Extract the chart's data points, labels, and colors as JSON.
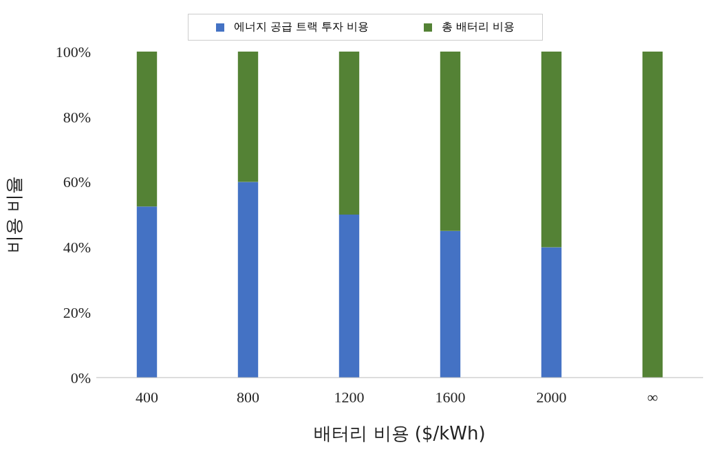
{
  "chart_data": {
    "type": "bar",
    "stacked": true,
    "xlabel": "배터리 비용 ($/kWh)",
    "ylabel": "비용 비율",
    "categories": [
      "400",
      "800",
      "1200",
      "1600",
      "2000",
      "∞"
    ],
    "series": [
      {
        "name": "에너지 공급 트랙 투자 비용",
        "color": "#4472c4",
        "values": [
          52.5,
          60,
          50,
          45,
          40,
          0
        ]
      },
      {
        "name": "총 배터리 비용",
        "color": "#548235",
        "values": [
          47.5,
          40,
          50,
          55,
          60,
          100
        ]
      }
    ],
    "ylim": [
      0,
      100
    ],
    "yticks": [
      {
        "value": 0,
        "label": "0%"
      },
      {
        "value": 20,
        "label": "20%"
      },
      {
        "value": 40,
        "label": "40%"
      },
      {
        "value": 60,
        "label": "60%"
      },
      {
        "value": 80,
        "label": "80%"
      },
      {
        "value": 100,
        "label": "100%"
      }
    ],
    "grid": false,
    "legend": "top"
  }
}
